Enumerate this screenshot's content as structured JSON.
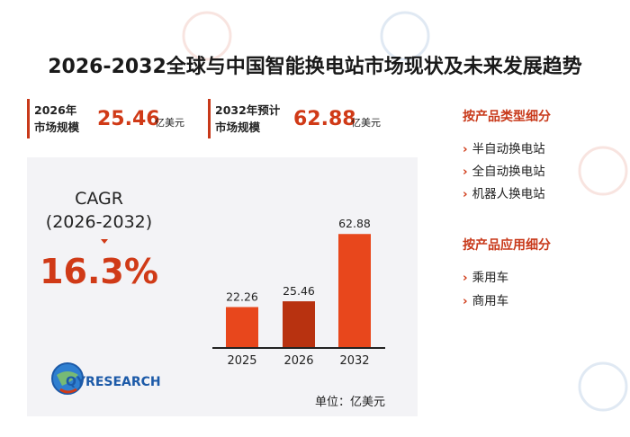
{
  "title": "2026-2032全球与中国智能换电站市场现状及未来发展趋势",
  "stats": [
    {
      "label_line1": "2026年",
      "label_line2": "市场规模",
      "value": "25.46",
      "unit": "亿美元"
    },
    {
      "label_line1": "2032年预计",
      "label_line2": "市场规模",
      "value": "62.88",
      "unit": "亿美元"
    }
  ],
  "cagr": {
    "line1": "CAGR",
    "line2": "(2026-2032)",
    "value": "16.3%"
  },
  "logo_text": "QYRESEARCH",
  "unit_note": "单位：亿美元",
  "chart_data": {
    "type": "bar",
    "categories": [
      "2025",
      "2026",
      "2032"
    ],
    "values": [
      22.26,
      25.46,
      62.88
    ],
    "value_labels": [
      "22.26",
      "25.46",
      "62.88"
    ],
    "ylim": [
      0,
      70
    ],
    "colors": [
      "#e8471c",
      "#b83210",
      "#e8471c"
    ],
    "title": "",
    "xlabel": "",
    "ylabel": ""
  },
  "segments": [
    {
      "title": "按产品类型细分",
      "items": [
        "半自动换电站",
        "全自动换电站",
        "机器人换电站"
      ]
    },
    {
      "title": "按产品应用细分",
      "items": [
        "乘用车",
        "商用车"
      ]
    }
  ],
  "colors": {
    "accent": "#d03a17",
    "panel_bg": "#f3f3f6"
  }
}
